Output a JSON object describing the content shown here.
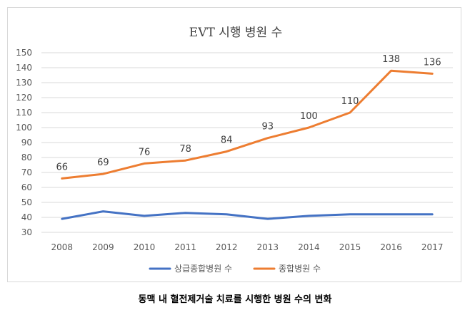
{
  "chart_data": {
    "type": "line",
    "title": "EVT 시행 병원 수",
    "categories": [
      "2008",
      "2009",
      "2010",
      "2011",
      "2012",
      "2013",
      "2014",
      "2015",
      "2016",
      "2017"
    ],
    "yticks": [
      "30",
      "40",
      "50",
      "60",
      "70",
      "80",
      "90",
      "100",
      "110",
      "120",
      "130",
      "140",
      "150"
    ],
    "ylim": [
      30,
      150
    ],
    "grid": true,
    "legend_position": "bottom",
    "series": [
      {
        "name": "상급종합병원 수",
        "color": "#4472C4",
        "values": [
          39,
          44,
          41,
          43,
          42,
          39,
          41,
          42,
          42,
          42
        ],
        "show_labels": false
      },
      {
        "name": "종합병원 수",
        "color": "#ED7D31",
        "values": [
          66,
          69,
          76,
          78,
          84,
          93,
          100,
          110,
          138,
          136
        ],
        "show_labels": true
      }
    ]
  },
  "caption": "동맥 내 혈전제거술 치료를 시행한 병원 수의 변화"
}
